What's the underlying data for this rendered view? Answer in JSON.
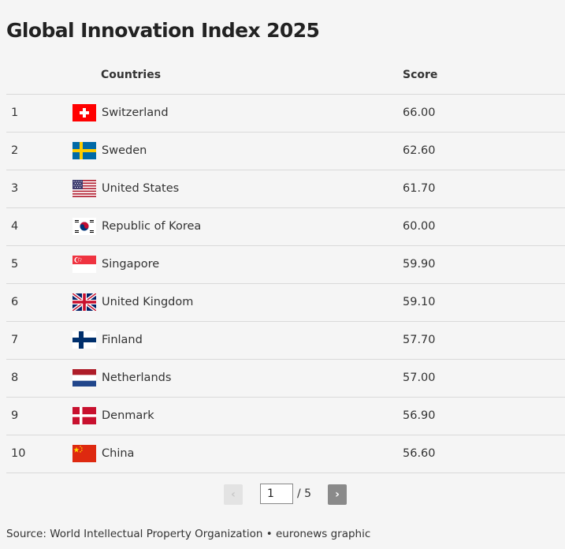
{
  "title": "Global Innovation Index 2025",
  "table": {
    "headers": {
      "countries": "Countries",
      "score": "Score"
    },
    "rows": [
      {
        "rank": "1",
        "country": "Switzerland",
        "score": "66.00",
        "flag_icon": "switzerland-flag-icon"
      },
      {
        "rank": "2",
        "country": "Sweden",
        "score": "62.60",
        "flag_icon": "sweden-flag-icon"
      },
      {
        "rank": "3",
        "country": "United States",
        "score": "61.70",
        "flag_icon": "united-states-flag-icon"
      },
      {
        "rank": "4",
        "country": "Republic of Korea",
        "score": "60.00",
        "flag_icon": "korea-flag-icon"
      },
      {
        "rank": "5",
        "country": "Singapore",
        "score": "59.90",
        "flag_icon": "singapore-flag-icon"
      },
      {
        "rank": "6",
        "country": "United Kingdom",
        "score": "59.10",
        "flag_icon": "united-kingdom-flag-icon"
      },
      {
        "rank": "7",
        "country": "Finland",
        "score": "57.70",
        "flag_icon": "finland-flag-icon"
      },
      {
        "rank": "8",
        "country": "Netherlands",
        "score": "57.00",
        "flag_icon": "netherlands-flag-icon"
      },
      {
        "rank": "9",
        "country": "Denmark",
        "score": "56.90",
        "flag_icon": "denmark-flag-icon"
      },
      {
        "rank": "10",
        "country": "China",
        "score": "56.60",
        "flag_icon": "china-flag-icon"
      }
    ]
  },
  "pagination": {
    "prev_label": "‹",
    "next_label": "›",
    "current_page": "1",
    "total_label": "/ 5"
  },
  "source": "Source: World Intellectual Property Organization • euronews graphic",
  "colors": {
    "background": "#f5f5f5",
    "divider": "#d9d9d9",
    "next_button": "#8a8a8a"
  }
}
